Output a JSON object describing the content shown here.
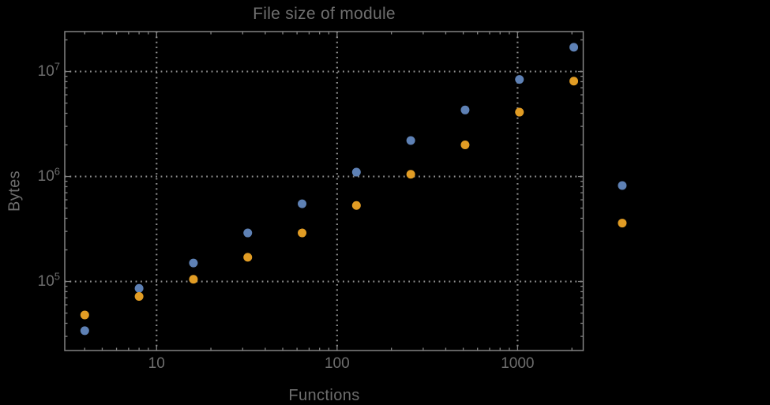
{
  "window": {
    "background": "#000000"
  },
  "chart_data": {
    "type": "scatter",
    "title": "File size of module",
    "xlabel": "Functions",
    "ylabel": "Bytes",
    "x_scale": "log",
    "y_scale": "log",
    "xlim": [
      3.1,
      2310
    ],
    "ylim": [
      22000,
      24000000
    ],
    "grid": "dotted",
    "legend": "none",
    "frame": true,
    "marker_radius": 5.5,
    "plot_range_clipping": false,
    "colors": {
      "background": "#000000",
      "text": "#6e6e6e",
      "frame": "#828282",
      "grid": "#8f8f8f",
      "blue": "#5e81b5",
      "orange": "#e19c24"
    },
    "x_ticks": [
      {
        "value": 10,
        "label": "10"
      },
      {
        "value": 100,
        "label": "100"
      },
      {
        "value": 1000,
        "label": "1000"
      }
    ],
    "y_ticks": [
      {
        "value": 100000,
        "base": "10",
        "exp": "5"
      },
      {
        "value": 1000000,
        "base": "10",
        "exp": "6"
      },
      {
        "value": 10000000,
        "base": "10",
        "exp": "7"
      }
    ],
    "series": [
      {
        "name": "blue",
        "color": "#5e81b5",
        "points": [
          [
            4,
            34000
          ],
          [
            8,
            86000
          ],
          [
            16,
            150000
          ],
          [
            32,
            290000
          ],
          [
            64,
            550000
          ],
          [
            128,
            1100000
          ],
          [
            256,
            2200000
          ],
          [
            512,
            4300000
          ],
          [
            1024,
            8400000
          ],
          [
            2048,
            17000000
          ],
          [
            3800,
            820000
          ]
        ]
      },
      {
        "name": "orange",
        "color": "#e19c24",
        "points": [
          [
            4,
            48000
          ],
          [
            8,
            72000
          ],
          [
            16,
            105000
          ],
          [
            32,
            170000
          ],
          [
            64,
            290000
          ],
          [
            128,
            530000
          ],
          [
            256,
            1050000
          ],
          [
            512,
            2000000
          ],
          [
            1024,
            4100000
          ],
          [
            2048,
            8100000
          ],
          [
            3800,
            360000
          ]
        ]
      }
    ]
  }
}
